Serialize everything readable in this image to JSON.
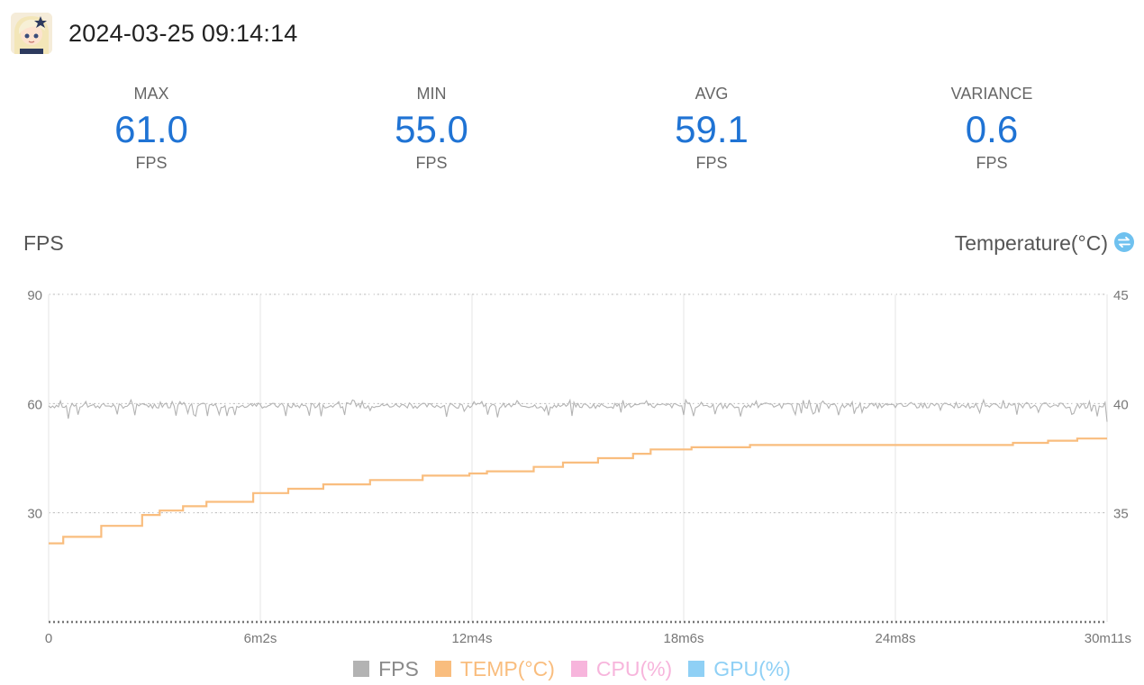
{
  "header": {
    "timestamp": "2024-03-25 09:14:14",
    "avatar_icon": "game-character-avatar-icon"
  },
  "stats": [
    {
      "label": "MAX",
      "value": "61.0",
      "unit": "FPS"
    },
    {
      "label": "MIN",
      "value": "55.0",
      "unit": "FPS"
    },
    {
      "label": "AVG",
      "value": "59.1",
      "unit": "FPS"
    },
    {
      "label": "VARIANCE",
      "value": "0.6",
      "unit": "FPS"
    }
  ],
  "colors": {
    "accent": "#1f73d4",
    "fps": "#b3b3b3",
    "temp": "#f9bd7e",
    "cpu": "#f7b5dc",
    "gpu": "#8fd0f5",
    "toggle": "#6fc1ef"
  },
  "chart_data": {
    "type": "line",
    "y_left_label": "FPS",
    "y_right_label": "Temperature(°C)",
    "y_left_ticks": [
      "90",
      "60",
      "30"
    ],
    "y_left_range": [
      0,
      90
    ],
    "y_right_ticks": [
      "45",
      "40",
      "35"
    ],
    "y_right_range": [
      30,
      45
    ],
    "x_ticks": [
      "0",
      "6m2s",
      "12m4s",
      "18m6s",
      "24m8s",
      "30m11s"
    ],
    "x_range_seconds": [
      0,
      1811
    ],
    "grid": true,
    "legend_placement": "bottom",
    "legend": [
      {
        "label": "FPS",
        "key": "fps"
      },
      {
        "label": "TEMP(°C)",
        "key": "temp"
      },
      {
        "label": "CPU(%)",
        "key": "cpu"
      },
      {
        "label": "GPU(%)",
        "key": "gpu"
      }
    ],
    "series": [
      {
        "name": "TEMP(°C)",
        "key": "temp",
        "points": [
          [
            0,
            33.6
          ],
          [
            25,
            33.9
          ],
          [
            90,
            34.4
          ],
          [
            160,
            34.9
          ],
          [
            190,
            35.1
          ],
          [
            230,
            35.3
          ],
          [
            270,
            35.5
          ],
          [
            340,
            35.5
          ],
          [
            350,
            35.9
          ],
          [
            410,
            36.1
          ],
          [
            470,
            36.3
          ],
          [
            550,
            36.5
          ],
          [
            640,
            36.7
          ],
          [
            720,
            36.8
          ],
          [
            750,
            36.9
          ],
          [
            830,
            37.1
          ],
          [
            880,
            37.3
          ],
          [
            940,
            37.5
          ],
          [
            1000,
            37.7
          ],
          [
            1030,
            37.9
          ],
          [
            1100,
            38.0
          ],
          [
            1200,
            38.1
          ],
          [
            1300,
            38.1
          ],
          [
            1400,
            38.1
          ],
          [
            1500,
            38.1
          ],
          [
            1590,
            38.1
          ],
          [
            1650,
            38.2
          ],
          [
            1710,
            38.3
          ],
          [
            1760,
            38.4
          ],
          [
            1811,
            38.4
          ]
        ]
      },
      {
        "name": "FPS",
        "key": "fps",
        "avg": 59.1,
        "min": 55.0,
        "max": 61.0,
        "samples": 540
      }
    ]
  }
}
